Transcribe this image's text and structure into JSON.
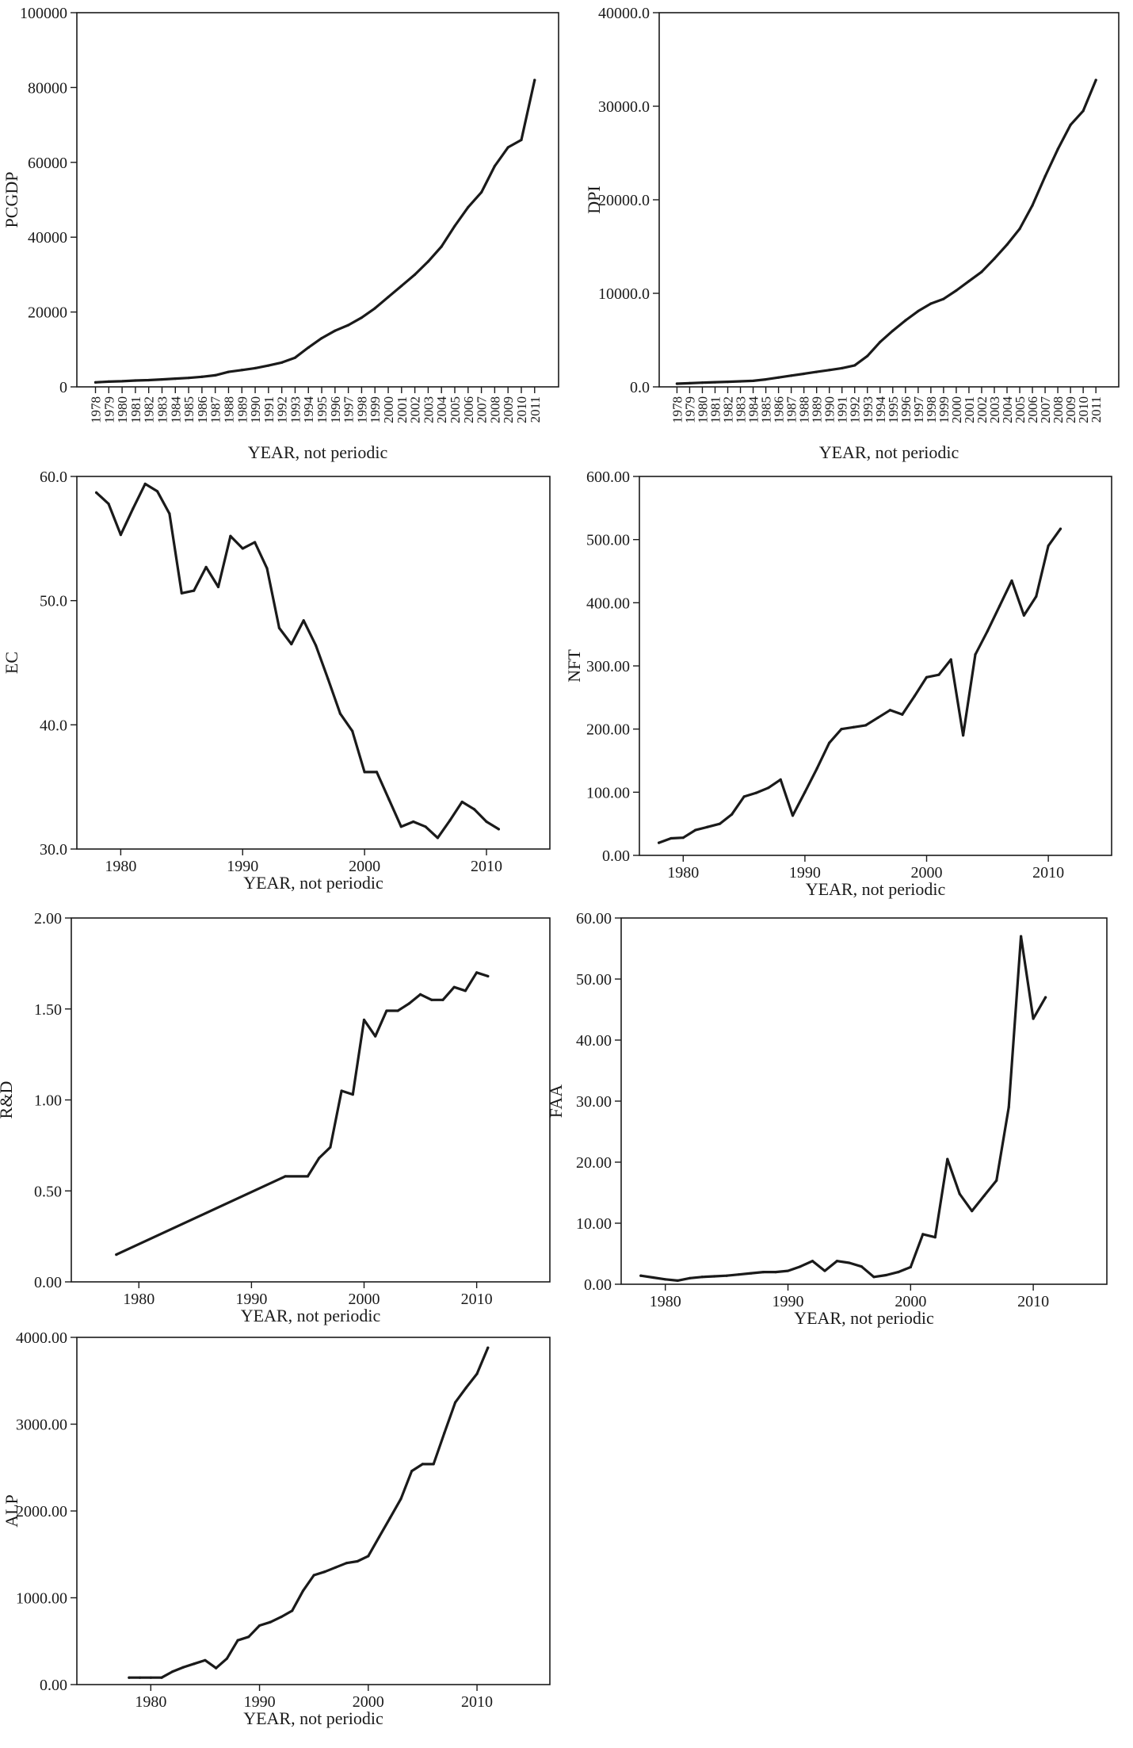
{
  "chart_data": [
    {
      "type": "line",
      "ylabel": "PCGDP",
      "xlabel": "YEAR, not periodic",
      "xlim": [
        1976.6,
        2012.8
      ],
      "ylim": [
        0,
        100000
      ],
      "xtick_style": "categorical",
      "xticks": [
        1978,
        1979,
        1980,
        1981,
        1982,
        1983,
        1984,
        1985,
        1986,
        1987,
        1988,
        1989,
        1990,
        1991,
        1992,
        1993,
        1994,
        1995,
        1996,
        1997,
        1998,
        1999,
        2000,
        2001,
        2002,
        2003,
        2004,
        2005,
        2006,
        2007,
        2008,
        2009,
        2010,
        2011
      ],
      "ytick_labels": [
        "0",
        "20000",
        "40000",
        "60000",
        "80000",
        "100000"
      ],
      "ytick_values": [
        0,
        20000,
        40000,
        60000,
        80000,
        100000
      ],
      "series": [
        {
          "name": "PCGDP",
          "x": [
            1978,
            1979,
            1980,
            1981,
            1982,
            1983,
            1984,
            1985,
            1986,
            1987,
            1988,
            1989,
            1990,
            1991,
            1992,
            1993,
            1994,
            1995,
            1996,
            1997,
            1998,
            1999,
            2000,
            2001,
            2002,
            2003,
            2004,
            2005,
            2006,
            2007,
            2008,
            2009,
            2010,
            2011
          ],
          "y": [
            1200,
            1400,
            1500,
            1700,
            1800,
            2000,
            2200,
            2400,
            2700,
            3100,
            4000,
            4500,
            5000,
            5700,
            6500,
            7800,
            10500,
            13000,
            15000,
            16500,
            18500,
            21000,
            24000,
            27000,
            30000,
            33500,
            37500,
            43000,
            48000,
            52000,
            59000,
            64000,
            66000,
            82000
          ]
        }
      ]
    },
    {
      "type": "line",
      "ylabel": "DPI",
      "xlabel": "YEAR, not periodic",
      "xlim": [
        1976.6,
        2012.8
      ],
      "ylim": [
        0,
        40000
      ],
      "xtick_style": "categorical",
      "xticks": [
        1978,
        1979,
        1980,
        1981,
        1982,
        1983,
        1984,
        1985,
        1986,
        1987,
        1988,
        1989,
        1990,
        1991,
        1992,
        1993,
        1994,
        1995,
        1996,
        1997,
        1998,
        1999,
        2000,
        2001,
        2002,
        2003,
        2004,
        2005,
        2006,
        2007,
        2008,
        2009,
        2010,
        2011
      ],
      "ytick_labels": [
        "0.0",
        "10000.0",
        "20000.0",
        "30000.0",
        "40000.0"
      ],
      "ytick_values": [
        0,
        10000,
        20000,
        30000,
        40000
      ],
      "series": [
        {
          "name": "DPI",
          "x": [
            1978,
            1979,
            1980,
            1981,
            1982,
            1983,
            1984,
            1985,
            1986,
            1987,
            1988,
            1989,
            1990,
            1991,
            1992,
            1993,
            1994,
            1995,
            1996,
            1997,
            1998,
            1999,
            2000,
            2001,
            2002,
            2003,
            2004,
            2005,
            2006,
            2007,
            2008,
            2009,
            2010,
            2011
          ],
          "y": [
            340,
            390,
            450,
            500,
            540,
            590,
            640,
            800,
            1000,
            1200,
            1400,
            1600,
            1800,
            2000,
            2300,
            3300,
            4800,
            6000,
            7100,
            8100,
            8900,
            9400,
            10300,
            11300,
            12300,
            13700,
            15200,
            16900,
            19400,
            22500,
            25400,
            28000,
            29500,
            32800
          ]
        }
      ]
    },
    {
      "type": "line",
      "ylabel": "EC",
      "xlabel": "YEAR, not periodic",
      "xlim": [
        1976.4,
        2015.2
      ],
      "ylim": [
        30,
        60
      ],
      "xtick_style": "numeric",
      "xticks": [
        1980,
        1990,
        2000,
        2010
      ],
      "ytick_labels": [
        "30.0",
        "40.0",
        "50.0",
        "60.0"
      ],
      "ytick_values": [
        30,
        40,
        50,
        60
      ],
      "series": [
        {
          "name": "EC",
          "x": [
            1978,
            1979,
            1980,
            1981,
            1982,
            1983,
            1984,
            1985,
            1986,
            1987,
            1988,
            1989,
            1990,
            1991,
            1992,
            1993,
            1994,
            1995,
            1996,
            1997,
            1998,
            1999,
            2000,
            2001,
            2002,
            2003,
            2004,
            2005,
            2006,
            2007,
            2008,
            2009,
            2010,
            2011
          ],
          "y": [
            58.7,
            57.8,
            55.3,
            57.4,
            59.4,
            58.8,
            57.0,
            50.6,
            50.8,
            52.7,
            51.1,
            55.2,
            54.2,
            54.7,
            52.6,
            47.8,
            46.5,
            48.4,
            46.4,
            43.7,
            40.9,
            39.5,
            36.2,
            36.2,
            34.0,
            31.8,
            32.2,
            31.8,
            30.9,
            32.3,
            33.8,
            33.2,
            32.2,
            31.6
          ]
        }
      ]
    },
    {
      "type": "line",
      "ylabel": "NFT",
      "xlabel": "YEAR, not periodic",
      "xlim": [
        1976.4,
        2015.2
      ],
      "ylim": [
        0,
        600
      ],
      "xtick_style": "numeric",
      "xticks": [
        1980,
        1990,
        2000,
        2010
      ],
      "ytick_labels": [
        "0.00",
        "100.00",
        "200.00",
        "300.00",
        "400.00",
        "500.00",
        "600.00"
      ],
      "ytick_values": [
        0,
        100,
        200,
        300,
        400,
        500,
        600
      ],
      "series": [
        {
          "name": "NFT",
          "x": [
            1978,
            1979,
            1980,
            1981,
            1982,
            1983,
            1984,
            1985,
            1986,
            1987,
            1988,
            1989,
            1990,
            1991,
            1992,
            1993,
            1994,
            1995,
            1996,
            1997,
            1998,
            1999,
            2000,
            2001,
            2002,
            2003,
            2004,
            2005,
            2006,
            2007,
            2008,
            2009,
            2010,
            2011
          ],
          "y": [
            20,
            27,
            28,
            40,
            45,
            50,
            65,
            93,
            99,
            107,
            120,
            63,
            100,
            138,
            178,
            200,
            203,
            206,
            218,
            230,
            223,
            252,
            282,
            286,
            310,
            190,
            318,
            355,
            395,
            435,
            380,
            410,
            490,
            517
          ]
        }
      ]
    },
    {
      "type": "line",
      "ylabel": "R&D",
      "xlabel": "YEAR, not periodic",
      "xlim": [
        1974.0,
        2016.5
      ],
      "ylim": [
        0,
        2.0
      ],
      "xtick_style": "numeric",
      "xticks": [
        1980,
        1990,
        2000,
        2010
      ],
      "ytick_labels": [
        "0.00",
        "0.50",
        "1.00",
        "1.50",
        "2.00"
      ],
      "ytick_values": [
        0,
        0.5,
        1.0,
        1.5,
        2.0
      ],
      "series": [
        {
          "name": "R&D",
          "x": [
            1978,
            1993,
            1995,
            1996,
            1997,
            1998,
            1999,
            2000,
            2001,
            2002,
            2003,
            2004,
            2005,
            2006,
            2007,
            2008,
            2009,
            2010,
            2011
          ],
          "y": [
            0.15,
            0.58,
            0.58,
            0.68,
            0.74,
            1.05,
            1.03,
            1.44,
            1.35,
            1.49,
            1.49,
            1.53,
            1.58,
            1.55,
            1.55,
            1.62,
            1.6,
            1.7,
            1.68
          ]
        }
      ]
    },
    {
      "type": "line",
      "ylabel": "FAA",
      "xlabel": "YEAR, not periodic",
      "xlim": [
        1976.4,
        2016.0
      ],
      "ylim": [
        0,
        60
      ],
      "xtick_style": "numeric",
      "xticks": [
        1980,
        1990,
        2000,
        2010
      ],
      "ytick_labels": [
        "0.00",
        "10.00",
        "20.00",
        "30.00",
        "40.00",
        "50.00",
        "60.00"
      ],
      "ytick_values": [
        0,
        10,
        20,
        30,
        40,
        50,
        60
      ],
      "series": [
        {
          "name": "FAA",
          "x": [
            1978,
            1979,
            1980,
            1981,
            1982,
            1983,
            1984,
            1985,
            1986,
            1987,
            1988,
            1989,
            1990,
            1991,
            1992,
            1993,
            1994,
            1995,
            1996,
            1997,
            1998,
            1999,
            2000,
            2001,
            2002,
            2003,
            2004,
            2005,
            2006,
            2007,
            2008,
            2009,
            2010,
            2011
          ],
          "y": [
            1.4,
            1.1,
            0.8,
            0.6,
            1.0,
            1.2,
            1.3,
            1.4,
            1.6,
            1.8,
            2.0,
            2.0,
            2.2,
            2.9,
            3.8,
            2.2,
            3.8,
            3.5,
            2.9,
            1.2,
            1.5,
            2.0,
            2.8,
            8.2,
            7.7,
            20.5,
            14.8,
            12.0,
            14.5,
            17.0,
            29.0,
            57.0,
            43.5,
            47.0
          ]
        }
      ]
    },
    {
      "type": "line",
      "ylabel": "ALP",
      "xlabel": "YEAR, not periodic",
      "xlim": [
        1973.2,
        2016.7
      ],
      "ylim": [
        0,
        4000
      ],
      "xtick_style": "numeric",
      "xticks": [
        1980,
        1990,
        2000,
        2010
      ],
      "ytick_labels": [
        "0.00",
        "1000.00",
        "2000.00",
        "3000.00",
        "4000.00"
      ],
      "ytick_values": [
        0,
        1000,
        2000,
        3000,
        4000
      ],
      "series": [
        {
          "name": "ALP",
          "x": [
            1978,
            1979,
            1980,
            1981,
            1982,
            1983,
            1984,
            1985,
            1986,
            1987,
            1988,
            1989,
            1990,
            1991,
            1992,
            1993,
            1994,
            1995,
            1996,
            1997,
            1998,
            1999,
            2000,
            2001,
            2002,
            2003,
            2004,
            2005,
            2006,
            2007,
            2008,
            2009,
            2010,
            2011
          ],
          "y": [
            80,
            80,
            80,
            80,
            150,
            200,
            240,
            280,
            190,
            300,
            510,
            550,
            680,
            720,
            780,
            850,
            1080,
            1260,
            1300,
            1350,
            1400,
            1420,
            1480,
            1700,
            1920,
            2140,
            2460,
            2540,
            2540,
            2900,
            3250,
            3420,
            3580,
            3880
          ]
        }
      ]
    }
  ]
}
